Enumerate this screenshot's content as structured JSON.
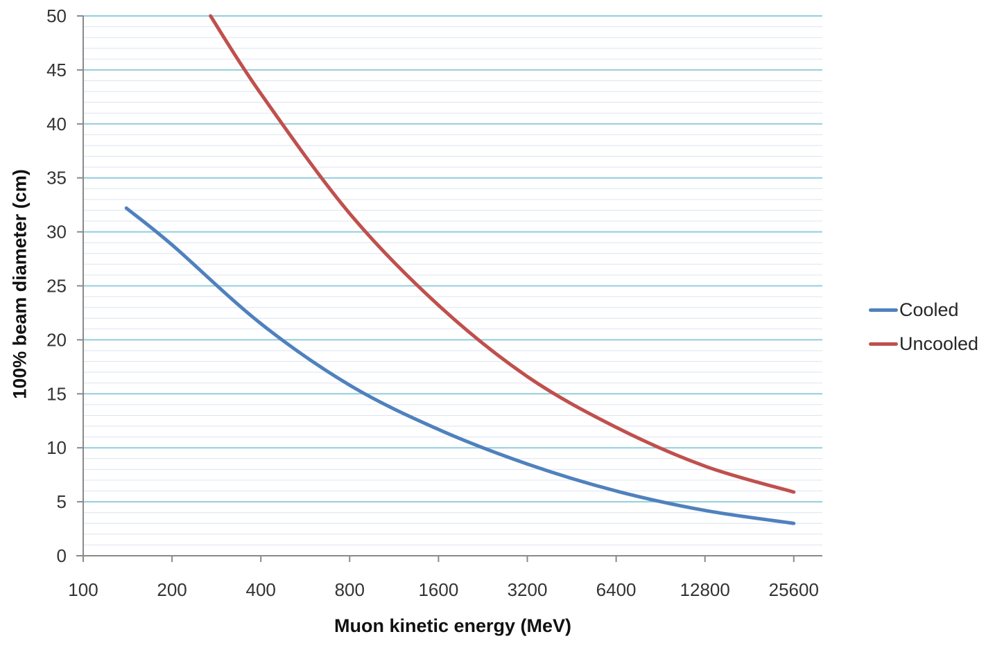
{
  "chart_data": {
    "type": "line",
    "title": "",
    "xlabel": "Muon kinetic energy (MeV)",
    "ylabel": "100% beam diameter (cm)",
    "x_scale": "log2",
    "x_range": [
      100,
      32000
    ],
    "x_ticks": [
      100,
      200,
      400,
      800,
      1600,
      3200,
      6400,
      12800,
      25600
    ],
    "ylim": [
      0,
      50
    ],
    "y_major_step": 5,
    "y_minor_step": 1,
    "grid": "on",
    "legend_position": "right",
    "series": [
      {
        "name": "Cooled",
        "color": "#4F81BD",
        "points": [
          [
            140,
            32.2
          ],
          [
            200,
            28.8
          ],
          [
            400,
            21.5
          ],
          [
            800,
            15.8
          ],
          [
            1600,
            11.7
          ],
          [
            3200,
            8.5
          ],
          [
            6400,
            6.0
          ],
          [
            12800,
            4.2
          ],
          [
            25600,
            3.0
          ]
        ]
      },
      {
        "name": "Uncooled",
        "color": "#C0504D",
        "points": [
          [
            270,
            50.0
          ],
          [
            400,
            42.8
          ],
          [
            800,
            31.7
          ],
          [
            1600,
            23.2
          ],
          [
            3200,
            16.6
          ],
          [
            6400,
            11.9
          ],
          [
            12800,
            8.3
          ],
          [
            25600,
            5.9
          ]
        ]
      }
    ],
    "colors": {
      "major_grid": "#92CDDC",
      "minor_grid": "#DCE3F0",
      "axis": "#898989",
      "tick_label": "#333333",
      "title_text": "#111111",
      "background": "#ffffff"
    }
  }
}
